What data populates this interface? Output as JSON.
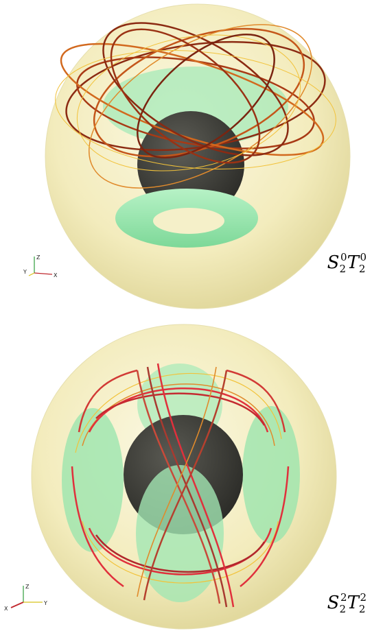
{
  "panels": [
    {
      "id": "top",
      "label": {
        "s": "S",
        "s_sub": "2",
        "s_sup": "0",
        "t": "T",
        "t_sub": "2",
        "t_sup": "0"
      },
      "axes": {
        "vertical": "Z",
        "left": "Y",
        "right": "X"
      }
    },
    {
      "id": "bottom",
      "label": {
        "s": "S",
        "s_sub": "2",
        "s_sup": "2",
        "t": "T",
        "t_sub": "2",
        "t_sup": "2"
      },
      "axes": {
        "vertical": "Z",
        "left": "X",
        "right": "Y"
      }
    }
  ],
  "colors": {
    "outer_sphere": "#f6f1c9",
    "inner_sphere": "#3d3d38",
    "isosurface": "#9fe8b4",
    "fieldline_dark": "#8b2a12",
    "fieldline_mid": "#d2691e",
    "fieldline_light": "#f2c23a",
    "fieldline_red": "#e0303c"
  }
}
